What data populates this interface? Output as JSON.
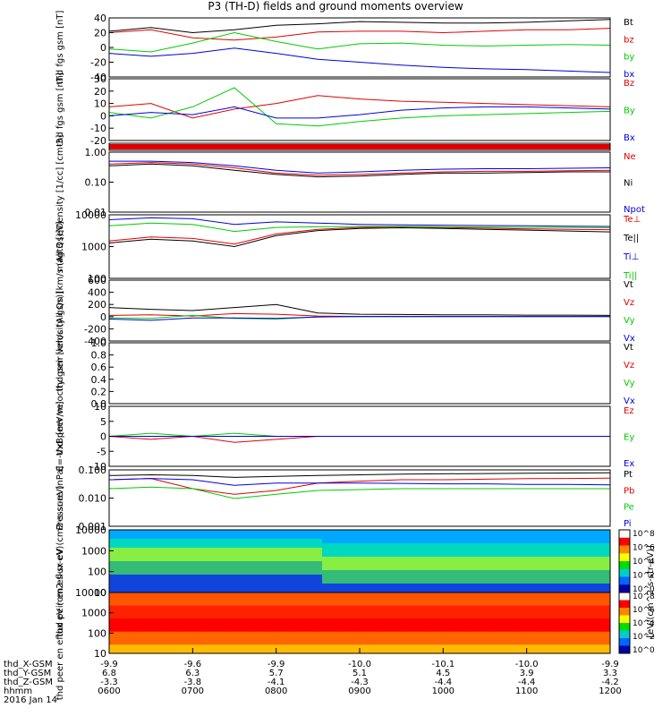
{
  "title": "P3 (TH-D) fields and ground moments overview",
  "date": "2016 Jan 14",
  "colors": {
    "black": "#000000",
    "red": "#e00000",
    "green": "#00cc00",
    "blue": "#0000dd"
  },
  "time_ticks": [
    "0600",
    "0700",
    "0800",
    "0900",
    "1000",
    "1100",
    "1200"
  ],
  "orbit_rows": [
    {
      "label": "thd_X-GSM",
      "values": [
        "-9.9",
        "-9.6",
        "-9.9",
        "-10.0",
        "-10.1",
        "-10.0",
        "-9.9"
      ]
    },
    {
      "label": "thd_Y-GSM",
      "values": [
        "6.8",
        "6.3",
        "5.7",
        "5.1",
        "4.5",
        "3.9",
        "3.3"
      ]
    },
    {
      "label": "thd_Z-GSM",
      "values": [
        "-3.3",
        "-3.8",
        "-4.1",
        "-4.3",
        "-4.4",
        "-4.4",
        "-4.2"
      ]
    },
    {
      "label": "hhmm",
      "values": [
        "0600",
        "0700",
        "0800",
        "0900",
        "1000",
        "1100",
        "1200"
      ]
    }
  ],
  "colorbar": {
    "label": "[eV/(cm^2-s-str-eV)]",
    "top_ticks": [
      "10^8",
      "10^6",
      "10^4",
      "10^2",
      "10^0"
    ],
    "bottom_ticks": [
      "10^8",
      "10^6",
      "10^4",
      "10^2",
      "10^0"
    ]
  },
  "chart_data": [
    {
      "type": "line",
      "ylabel": "thd fgs gsm [nT]",
      "ylim": [
        -40,
        40
      ],
      "ticks": [
        "40",
        "20",
        "0",
        "-20",
        "-40"
      ],
      "series": [
        {
          "name": "Bt",
          "color": "black",
          "values": [
            22,
            27,
            20,
            24,
            30,
            32,
            35,
            34,
            33,
            33,
            34,
            36,
            38
          ]
        },
        {
          "name": "bz",
          "color": "red",
          "values": [
            20,
            24,
            13,
            10,
            14,
            21,
            22,
            22,
            20,
            22,
            24,
            24,
            26
          ]
        },
        {
          "name": "by",
          "color": "green",
          "values": [
            -2,
            -6,
            6,
            20,
            8,
            -2,
            5,
            6,
            3,
            2,
            3,
            4,
            3
          ]
        },
        {
          "name": "bx",
          "color": "blue",
          "values": [
            -8,
            -12,
            -8,
            -1,
            -8,
            -16,
            -20,
            -24,
            -27,
            -29,
            -30,
            -32,
            -34
          ]
        }
      ]
    },
    {
      "type": "line",
      "ylabel": "thd fgs gsm [nT]",
      "ylim": [
        -25,
        30
      ],
      "ticks": [
        "30",
        "20",
        "10",
        "0",
        "-10",
        "-20"
      ],
      "series": [
        {
          "name": "Bz",
          "color": "red",
          "values": [
            5,
            8,
            -5,
            3,
            8,
            15,
            12,
            10,
            9,
            8,
            7,
            6,
            5
          ]
        },
        {
          "name": "By",
          "color": "green",
          "values": [
            0,
            -5,
            5,
            22,
            -10,
            -12,
            -8,
            -5,
            -3,
            -2,
            -1,
            0,
            1
          ]
        },
        {
          "name": "Bx",
          "color": "blue",
          "values": [
            -3,
            0,
            -2,
            5,
            -5,
            -5,
            -2,
            2,
            4,
            5,
            5,
            4,
            3
          ]
        }
      ]
    },
    {
      "type": "line",
      "ylabel": "Density [1/cc] [cm-3]",
      "ylim": [
        0.01,
        1
      ],
      "log": true,
      "ticks": [
        "1.00",
        "0.10",
        "0.01"
      ],
      "series": [
        {
          "name": "Ne",
          "color": "red",
          "values": [
            0.4,
            0.45,
            0.4,
            0.3,
            0.2,
            0.17,
            0.18,
            0.2,
            0.22,
            0.23,
            0.23,
            0.24,
            0.25
          ]
        },
        {
          "name": "Ni",
          "color": "black",
          "values": [
            0.35,
            0.4,
            0.35,
            0.25,
            0.18,
            0.15,
            0.16,
            0.18,
            0.2,
            0.2,
            0.21,
            0.22,
            0.22
          ]
        },
        {
          "name": "Npot",
          "color": "blue",
          "values": [
            0.5,
            0.5,
            0.45,
            0.35,
            0.25,
            0.2,
            0.22,
            0.25,
            0.27,
            0.28,
            0.28,
            0.29,
            0.3
          ]
        }
      ]
    },
    {
      "type": "line",
      "ylabel": "magt3 [eV]",
      "ylim": [
        100,
        10000
      ],
      "log": true,
      "ticks": [
        "10000",
        "1000",
        "100"
      ],
      "series": [
        {
          "name": "Te⊥",
          "color": "red",
          "values": [
            1500,
            2000,
            1800,
            1200,
            2500,
            3500,
            4000,
            4200,
            4000,
            3800,
            3600,
            3500,
            3400
          ]
        },
        {
          "name": "Te||",
          "color": "black",
          "values": [
            1300,
            1700,
            1500,
            1000,
            2200,
            3200,
            3700,
            3900,
            3700,
            3500,
            3300,
            3100,
            2900
          ]
        },
        {
          "name": "Ti⊥",
          "color": "blue",
          "values": [
            7000,
            8000,
            7500,
            5000,
            6000,
            5500,
            5000,
            4800,
            4700,
            4600,
            4500,
            4400,
            4300
          ]
        },
        {
          "name": "Ti||",
          "color": "green",
          "values": [
            4500,
            5500,
            5000,
            3000,
            4000,
            4200,
            4300,
            4300,
            4200,
            4100,
            4000,
            4000,
            3900
          ]
        }
      ]
    },
    {
      "type": "line",
      "ylabel": "thd peir velocity gsm [km/s (All Qs)]",
      "ylim": [
        -400,
        600
      ],
      "ticks": [
        "600",
        "400",
        "200",
        "0",
        "-200",
        "-400"
      ],
      "series": [
        {
          "name": "Vt",
          "color": "black",
          "values": [
            150,
            120,
            100,
            150,
            200,
            60,
            40,
            35,
            30,
            30,
            25,
            25,
            20
          ]
        },
        {
          "name": "Vz",
          "color": "red",
          "values": [
            20,
            30,
            10,
            50,
            40,
            10,
            5,
            5,
            5,
            5,
            5,
            5,
            5
          ]
        },
        {
          "name": "Vy",
          "color": "green",
          "values": [
            -20,
            -30,
            20,
            -30,
            -40,
            -5,
            0,
            0,
            0,
            0,
            0,
            0,
            0
          ]
        },
        {
          "name": "Vx",
          "color": "blue",
          "values": [
            -40,
            -60,
            -20,
            -20,
            -30,
            -5,
            0,
            0,
            0,
            0,
            0,
            0,
            0
          ]
        }
      ]
    },
    {
      "type": "line",
      "ylabel": "thd peer velocity gsm [km/s (All Qs)]",
      "ylim": [
        0,
        1
      ],
      "ticks": [
        "1.0",
        "0.8",
        "0.6",
        "0.4",
        "0.2",
        "0.0"
      ],
      "series": [
        {
          "name": "Vt",
          "color": "black",
          "values": []
        },
        {
          "name": "Vz",
          "color": "red",
          "values": []
        },
        {
          "name": "Vy",
          "color": "green",
          "values": []
        },
        {
          "name": "Vx",
          "color": "blue",
          "values": []
        }
      ]
    },
    {
      "type": "line",
      "ylabel": "E=-VxB [mV/m]",
      "ylim": [
        -10,
        10
      ],
      "ticks": [
        "10",
        "5",
        "0",
        "-5",
        "-10"
      ],
      "series": [
        {
          "name": "Ez",
          "color": "red",
          "values": [
            0,
            -1,
            0,
            -2,
            -1,
            0,
            0,
            0,
            0,
            0,
            0,
            0,
            0
          ]
        },
        {
          "name": "Ey",
          "color": "green",
          "values": [
            0,
            1,
            0,
            1,
            0,
            0,
            0,
            0,
            0,
            0,
            0,
            0,
            0
          ]
        },
        {
          "name": "Ex",
          "color": "blue",
          "values": [
            0,
            0,
            0,
            0,
            0,
            0,
            0,
            0,
            0,
            0,
            0,
            0,
            0
          ]
        }
      ]
    },
    {
      "type": "line",
      "ylabel": "Pressure [nPa]",
      "ylim": [
        0.001,
        1
      ],
      "log": true,
      "ticks": [
        "0.100",
        "0.010",
        "0.001"
      ],
      "series": [
        {
          "name": "Pt",
          "color": "black",
          "values": [
            0.5,
            0.55,
            0.5,
            0.4,
            0.45,
            0.5,
            0.55,
            0.6,
            0.62,
            0.64,
            0.66,
            0.68,
            0.7
          ]
        },
        {
          "name": "Pb",
          "color": "red",
          "values": [
            0.3,
            0.35,
            0.1,
            0.05,
            0.08,
            0.2,
            0.25,
            0.3,
            0.3,
            0.32,
            0.34,
            0.35,
            0.36
          ]
        },
        {
          "name": "Pe",
          "color": "green",
          "values": [
            0.1,
            0.12,
            0.1,
            0.03,
            0.05,
            0.08,
            0.09,
            0.1,
            0.1,
            0.1,
            0.1,
            0.1,
            0.1
          ]
        },
        {
          "name": "Pi",
          "color": "blue",
          "values": [
            0.3,
            0.35,
            0.3,
            0.15,
            0.2,
            0.2,
            0.2,
            0.19,
            0.18,
            0.18,
            0.17,
            0.17,
            0.16
          ]
        }
      ]
    },
    {
      "type": "heatmap",
      "ylabel": "thd peir en eflux eV (cm2-s-sr-eV)",
      "ylim": [
        10,
        10000
      ],
      "log": true,
      "ticks": [
        "10000",
        "1000",
        "100",
        "10"
      ]
    },
    {
      "type": "heatmap",
      "ylabel": "thd peer en eflux eV (cm2-s-sr-eV)",
      "ylim": [
        10,
        10000
      ],
      "log": true,
      "ticks": [
        "10000",
        "1000",
        "100",
        "10"
      ]
    }
  ]
}
